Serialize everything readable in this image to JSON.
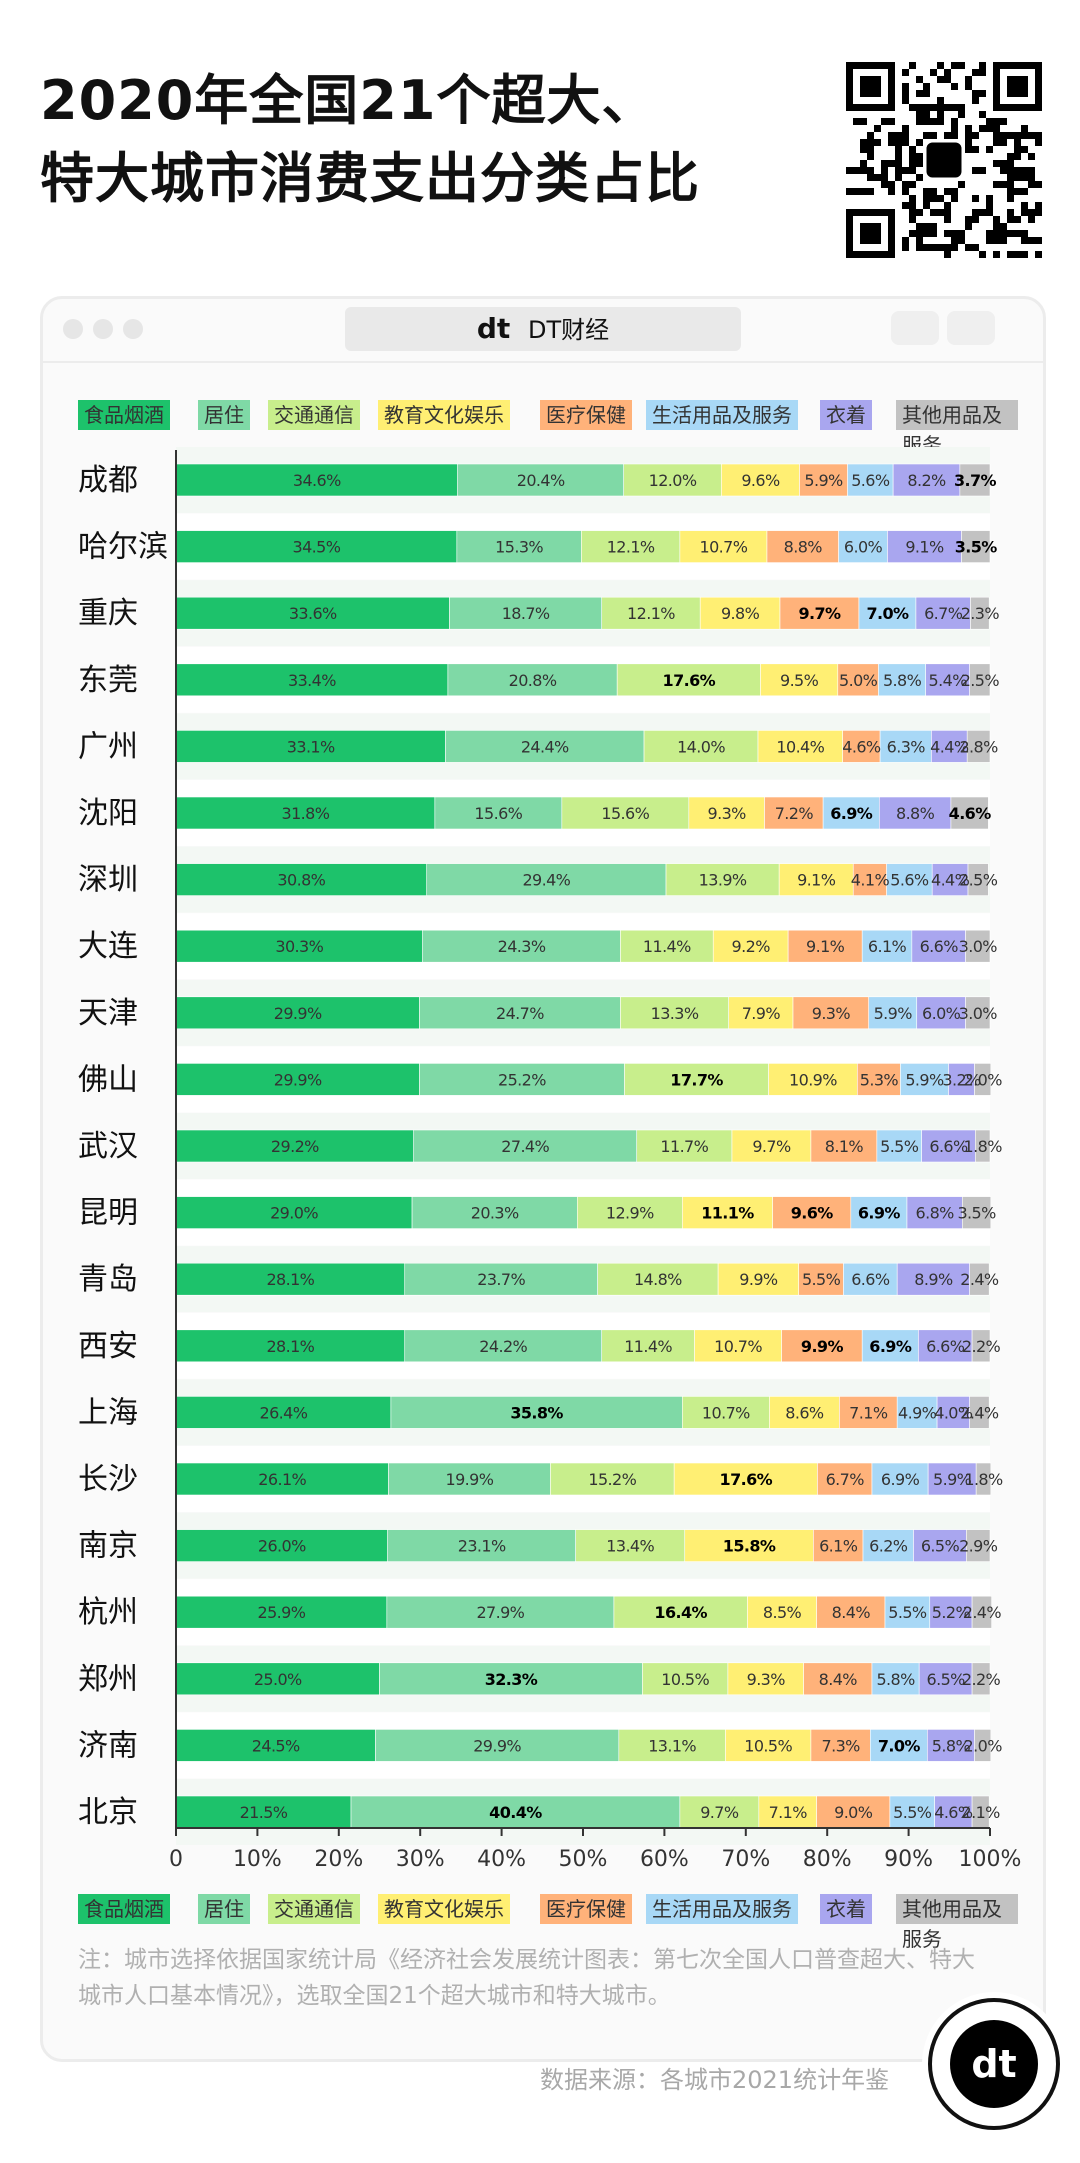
{
  "title": {
    "line1": "2020年全国21个超大、",
    "line2": "特大城市消费支出分类占比"
  },
  "brand": {
    "logo": "dt",
    "name": "DT财经"
  },
  "colors": {
    "categories": [
      "#1dc26b",
      "#7fd9a6",
      "#c8ee8c",
      "#ffef73",
      "#ffb27a",
      "#a8d8f6",
      "#a9a6ef",
      "#c2c2c2"
    ],
    "highlight_text": "#000000"
  },
  "legend": [
    "食品烟酒",
    "居住",
    "交通通信",
    "教育文化娱乐",
    "医疗保健",
    "生活用品及服务",
    "衣着",
    "其他用品及服务"
  ],
  "chart_data": {
    "type": "bar",
    "orientation": "horizontal-stacked-100",
    "categories": [
      "成都",
      "哈尔滨",
      "重庆",
      "东莞",
      "广州",
      "沈阳",
      "深圳",
      "大连",
      "天津",
      "佛山",
      "武汉",
      "昆明",
      "青岛",
      "西安",
      "上海",
      "长沙",
      "南京",
      "杭州",
      "郑州",
      "济南",
      "北京"
    ],
    "series": [
      {
        "name": "食品烟酒",
        "values": [
          34.6,
          34.5,
          33.6,
          33.4,
          33.1,
          31.8,
          30.8,
          30.3,
          29.9,
          29.9,
          29.2,
          29.0,
          28.1,
          28.1,
          26.4,
          26.1,
          26.0,
          25.9,
          25.0,
          24.5,
          21.5
        ]
      },
      {
        "name": "居住",
        "values": [
          20.4,
          15.3,
          18.7,
          20.8,
          24.4,
          15.6,
          29.4,
          24.3,
          24.7,
          25.2,
          27.4,
          20.3,
          23.7,
          24.2,
          35.8,
          19.9,
          23.1,
          27.9,
          32.3,
          29.9,
          40.4
        ]
      },
      {
        "name": "交通通信",
        "values": [
          12.0,
          12.1,
          12.1,
          17.6,
          14.0,
          15.6,
          13.9,
          11.4,
          13.3,
          17.7,
          11.7,
          12.9,
          14.8,
          11.4,
          10.7,
          15.2,
          13.4,
          16.4,
          10.5,
          13.1,
          9.7
        ]
      },
      {
        "name": "教育文化娱乐",
        "values": [
          9.6,
          10.7,
          9.8,
          9.5,
          10.4,
          9.3,
          9.1,
          9.2,
          7.9,
          10.9,
          9.7,
          11.1,
          9.9,
          10.7,
          8.6,
          17.6,
          15.8,
          8.5,
          9.3,
          10.5,
          7.1
        ]
      },
      {
        "name": "医疗保健",
        "values": [
          5.9,
          8.8,
          9.7,
          5.0,
          4.6,
          7.2,
          4.1,
          9.1,
          9.3,
          5.3,
          8.1,
          9.6,
          5.5,
          9.9,
          7.1,
          6.7,
          6.1,
          8.4,
          8.4,
          7.3,
          9.0
        ]
      },
      {
        "name": "生活用品及服务",
        "values": [
          5.6,
          6.0,
          7.0,
          5.8,
          6.3,
          6.9,
          5.6,
          6.1,
          5.9,
          5.9,
          5.5,
          6.9,
          6.6,
          6.9,
          4.9,
          6.9,
          6.2,
          5.5,
          5.8,
          7.0,
          5.5
        ]
      },
      {
        "name": "衣着",
        "values": [
          8.2,
          9.1,
          6.7,
          5.4,
          4.4,
          8.8,
          4.4,
          6.6,
          6.0,
          3.2,
          6.6,
          6.8,
          8.9,
          6.6,
          4.0,
          5.9,
          6.5,
          5.2,
          6.5,
          5.8,
          4.6
        ]
      },
      {
        "name": "其他用品及服务",
        "values": [
          3.7,
          3.5,
          2.3,
          2.5,
          2.8,
          4.6,
          2.5,
          3.0,
          3.0,
          2.0,
          1.8,
          3.5,
          2.4,
          2.2,
          2.4,
          1.8,
          2.9,
          2.4,
          2.2,
          2.0,
          2.1
        ]
      }
    ],
    "labels": [
      [
        "34.6%",
        "20.4%",
        "12.0%",
        "9.6%",
        "5.9%",
        "5.6%",
        "8.2%",
        "3.7%"
      ],
      [
        "34.5%",
        "15.3%",
        "12.1%",
        "10.7%",
        "8.8%",
        "6.0%",
        "9.1%",
        "3.5%"
      ],
      [
        "33.6%",
        "18.7%",
        "12.1%",
        "9.8%",
        "9.7%",
        "7.0%",
        "6.7%",
        "2.3%"
      ],
      [
        "33.4%",
        "20.8%",
        "17.6%",
        "9.5%",
        "5.0%",
        "5.8%",
        "5.4%",
        "2.5%"
      ],
      [
        "33.1%",
        "24.4%",
        "14.0%",
        "10.4%",
        "4.6%",
        "6.3%",
        "4.4%",
        "2.8%"
      ],
      [
        "31.8%",
        "15.6%",
        "15.6%",
        "9.3%",
        "7.2%",
        "6.9%",
        "8.8%",
        "4.6%"
      ],
      [
        "30.8%",
        "29.4%",
        "13.9%",
        "9.1%",
        "4.1%",
        "5.6%",
        "4.4%",
        "2.5%"
      ],
      [
        "30.3%",
        "24.3%",
        "11.4%",
        "9.2%",
        "9.1%",
        "6.1%",
        "6.6%",
        "3.0%"
      ],
      [
        "29.9%",
        "24.7%",
        "13.3%",
        "7.9%",
        "9.3%",
        "5.9%",
        "6.0%",
        "3.0%"
      ],
      [
        "29.9%",
        "25.2%",
        "17.7%",
        "10.9%",
        "5.3%",
        "5.9%",
        "3.2%",
        "2.0%"
      ],
      [
        "29.2%",
        "27.4%",
        "11.7%",
        "9.7%",
        "8.1%",
        "5.5%",
        "6.6%",
        "1.8%"
      ],
      [
        "29.0%",
        "20.3%",
        "12.9%",
        "11.1%",
        "9.6%",
        "6.9%",
        "6.8%",
        "3.5%"
      ],
      [
        "28.1%",
        "23.7%",
        "14.8%",
        "9.9%",
        "5.5%",
        "6.6%",
        "8.9%",
        "2.4%"
      ],
      [
        "28.1%",
        "24.2%",
        "11.4%",
        "10.7%",
        "9.9%",
        "6.9%",
        "6.6%",
        "2.2%"
      ],
      [
        "26.4%",
        "35.8%",
        "10.7%",
        "8.6%",
        "7.1%",
        "4.9%",
        "4.0%",
        "2.4%"
      ],
      [
        "26.1%",
        "19.9%",
        "15.2%",
        "17.6%",
        "6.7%",
        "6.9%",
        "5.9%",
        "1.8%"
      ],
      [
        "26.0%",
        "23.1%",
        "13.4%",
        "15.8%",
        "6.1%",
        "6.2%",
        "6.5%",
        "2.9%"
      ],
      [
        "25.9%",
        "27.9%",
        "16.4%",
        "8.5%",
        "8.4%",
        "5.5%",
        "5.2%",
        "2.4%"
      ],
      [
        "25.0%",
        "32.3%",
        "10.5%",
        "9.3%",
        "8.4%",
        "5.8%",
        "6.5%",
        "2.2%"
      ],
      [
        "24.5%",
        "29.9%",
        "13.1%",
        "10.5%",
        "7.3%",
        "7.0%",
        "5.8%",
        "2.0%"
      ],
      [
        "21.5%",
        "40.4%",
        "9.7%",
        "7.1%",
        "9.0%",
        "5.5%",
        "4.6%",
        "2.1%"
      ]
    ],
    "bold": [
      [
        0,
        7
      ],
      [
        1,
        7
      ],
      [
        2,
        4
      ],
      [
        2,
        5
      ],
      [
        3,
        2
      ],
      [
        5,
        5
      ],
      [
        5,
        7
      ],
      [
        9,
        2
      ],
      [
        11,
        3
      ],
      [
        11,
        4
      ],
      [
        11,
        5
      ],
      [
        13,
        4
      ],
      [
        13,
        5
      ],
      [
        14,
        1
      ],
      [
        15,
        3
      ],
      [
        16,
        3
      ],
      [
        17,
        2
      ],
      [
        18,
        1
      ],
      [
        19,
        5
      ],
      [
        20,
        1
      ]
    ],
    "x_ticks": [
      "0",
      "10%",
      "20%",
      "30%",
      "40%",
      "50%",
      "60%",
      "70%",
      "80%",
      "90%",
      "100%"
    ],
    "xlim": [
      0,
      100
    ]
  },
  "note": "注：城市选择依据国家统计局《经济社会发展统计图表：第七次全国人口普查超大、特大城市人口基本情况》，选取全国21个超大城市和特大城市。",
  "source": "数据来源：各城市2021统计年鉴"
}
